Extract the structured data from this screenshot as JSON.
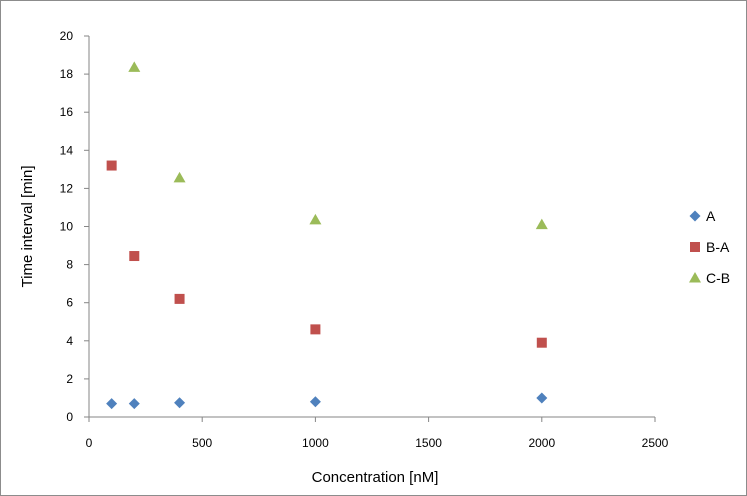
{
  "chart_data": {
    "type": "scatter",
    "xlabel": "Concentration [nM]",
    "ylabel": "Time interval [min]",
    "xlim": [
      0,
      2500
    ],
    "ylim": [
      0,
      20
    ],
    "x_ticks": [
      0,
      500,
      1000,
      1500,
      2000,
      2500
    ],
    "y_ticks": [
      0,
      2,
      4,
      6,
      8,
      10,
      12,
      14,
      16,
      18,
      20
    ],
    "grid": false,
    "legend_position": "right",
    "series": [
      {
        "name": "A",
        "marker": "diamond",
        "color": "#4f81bd",
        "points": [
          [
            100,
            0.7
          ],
          [
            200,
            0.7
          ],
          [
            400,
            0.75
          ],
          [
            1000,
            0.8
          ],
          [
            2000,
            1.0
          ]
        ]
      },
      {
        "name": "B-A",
        "marker": "square",
        "color": "#c0504d",
        "points": [
          [
            100,
            13.2
          ],
          [
            200,
            8.45
          ],
          [
            400,
            6.2
          ],
          [
            1000,
            4.6
          ],
          [
            2000,
            3.9
          ]
        ]
      },
      {
        "name": "C-B",
        "marker": "triangle",
        "color": "#9bbb59",
        "points": [
          [
            200,
            18.35
          ],
          [
            400,
            12.55
          ],
          [
            1000,
            10.35
          ],
          [
            2000,
            10.1
          ]
        ]
      }
    ]
  }
}
